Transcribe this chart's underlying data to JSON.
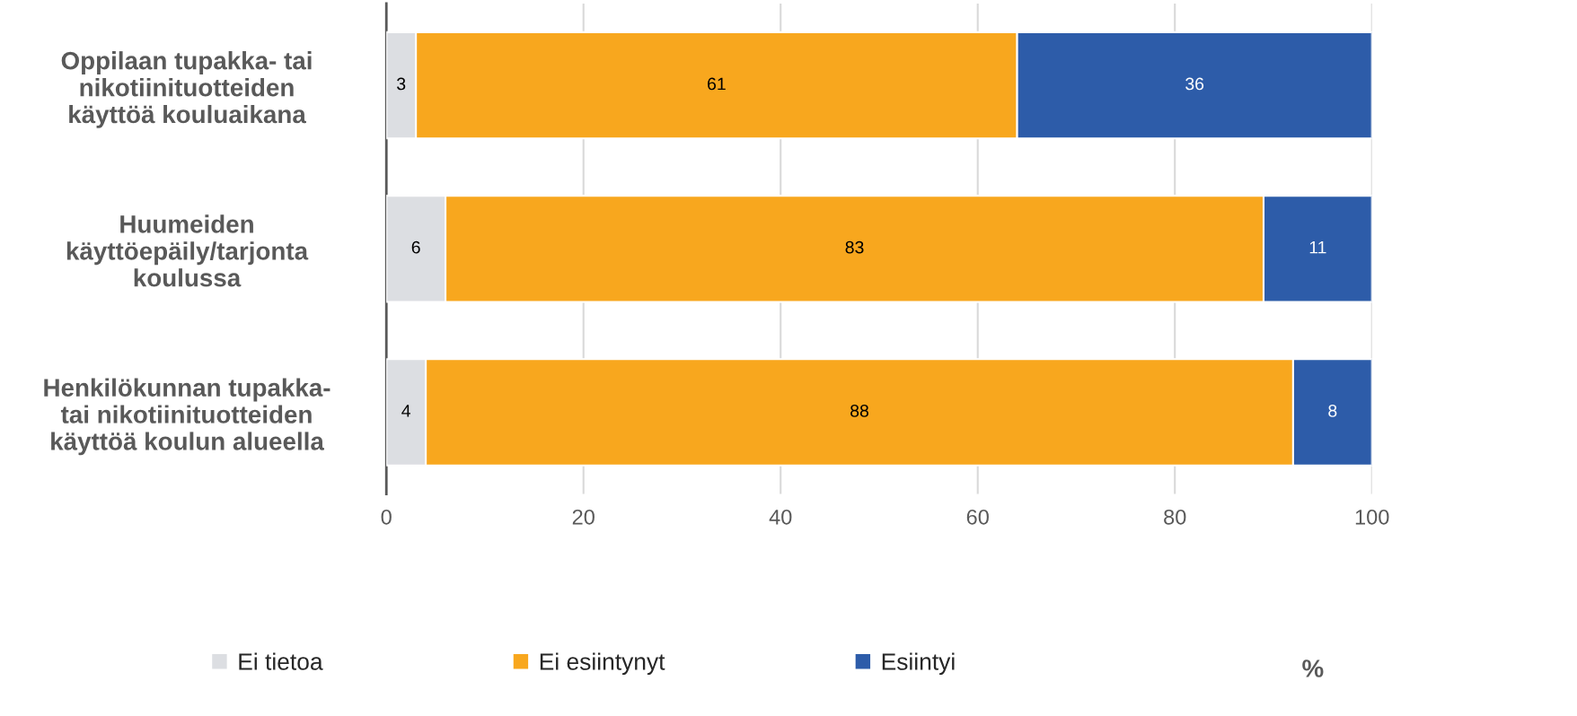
{
  "chart_data": {
    "type": "bar",
    "orientation": "horizontal",
    "stacked": true,
    "annotations": [
      "%"
    ],
    "categories": [
      "Oppilaan tupakka- tai\nnikotiinituotteiden\nkäyttöä kouluaikana",
      "Huumeiden\nkäyttöepäily/tarjonta\nkoulussa",
      "Henkilökunnan tupakka-\ntai nikotiinituotteiden\nkäyttöä koulun alueella"
    ],
    "series": [
      {
        "name": "Ei tietoa",
        "color": "#dcdee2",
        "values": [
          3,
          6,
          4
        ]
      },
      {
        "name": "Ei esiintynyt",
        "color": "#f8a71e",
        "values": [
          61,
          83,
          88
        ]
      },
      {
        "name": "Esiintyi",
        "color": "#2d5ca9",
        "values": [
          36,
          11,
          8
        ]
      }
    ],
    "xlim": [
      0,
      100
    ],
    "xticks": [
      0,
      20,
      40,
      60,
      80,
      100
    ],
    "grid": "x",
    "legend": "bottom",
    "data_labels": true
  }
}
